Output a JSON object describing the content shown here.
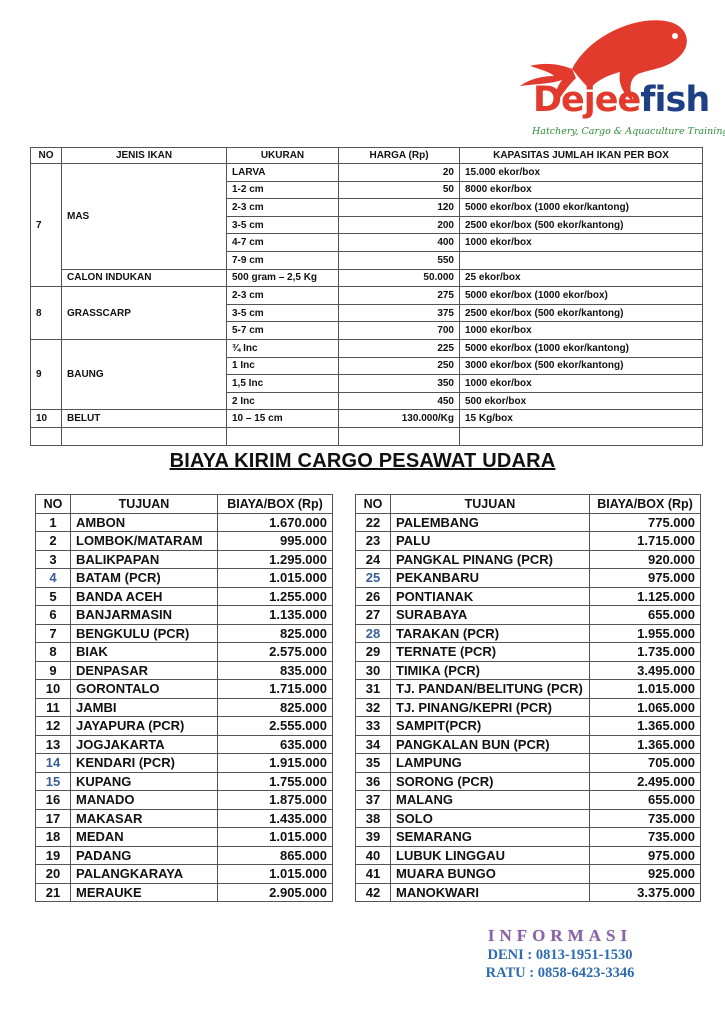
{
  "brand": {
    "name_part1": "Dejee",
    "name_part2": "fish",
    "tagline": "Hatchery, Cargo & Aquaculture Training",
    "colors": {
      "red": "#e23a2c",
      "blue": "#1e3f86",
      "green": "#2e8b3a"
    }
  },
  "fish_table": {
    "headers": [
      "NO",
      "JENIS IKAN",
      "UKURAN",
      "HARGA (Rp)",
      "KAPASITAS JUMLAH IKAN PER BOX"
    ],
    "groups": [
      {
        "no": "7",
        "species": [
          {
            "name": "MAS",
            "rows": [
              [
                "LARVA",
                "20",
                "15.000 ekor/box"
              ],
              [
                "1-2 cm",
                "50",
                "8000 ekor/box"
              ],
              [
                "2-3 cm",
                "120",
                "5000 ekor/box (1000 ekor/kantong)"
              ],
              [
                "3-5 cm",
                "200",
                "2500 ekor/box (500 ekor/kantong)"
              ],
              [
                "4-7 cm",
                "400",
                "1000 ekor/box"
              ],
              [
                "7-9 cm",
                "550",
                ""
              ]
            ]
          },
          {
            "name": "CALON INDUKAN",
            "rows": [
              [
                "500 gram – 2,5 Kg",
                "50.000",
                "25 ekor/box"
              ]
            ]
          }
        ]
      },
      {
        "no": "8",
        "species": [
          {
            "name": "GRASSCARP",
            "rows": [
              [
                "2-3 cm",
                "275",
                "5000 ekor/box (1000 ekor/box)"
              ],
              [
                "3-5 cm",
                "375",
                "2500 ekor/box (500 ekor/kantong)"
              ],
              [
                "5-7 cm",
                "700",
                "1000 ekor/box"
              ]
            ]
          }
        ]
      },
      {
        "no": "9",
        "species": [
          {
            "name": "BAUNG",
            "rows": [
              [
                "¾ Inc",
                "225",
                "5000 ekor/box (1000 ekor/kantong)"
              ],
              [
                "1 Inc",
                "250",
                "3000 ekor/box (500 ekor/kantong)"
              ],
              [
                "1,5 Inc",
                "350",
                "1000 ekor/box"
              ],
              [
                "2 Inc",
                "450",
                "500 ekor/box"
              ]
            ]
          }
        ]
      },
      {
        "no": "10",
        "species": [
          {
            "name": "BELUT",
            "rows": [
              [
                "10 – 15 cm",
                "130.000/Kg",
                "15 Kg/box"
              ]
            ]
          }
        ]
      }
    ]
  },
  "cargo": {
    "title": "BIAYA KIRIM CARGO PESAWAT UDARA",
    "headers": [
      "NO",
      "TUJUAN",
      "BIAYA/BOX (Rp)"
    ],
    "left": [
      {
        "no": "1",
        "dest": "AMBON",
        "cost": "1.670.000"
      },
      {
        "no": "2",
        "dest": "LOMBOK/MATARAM",
        "cost": "995.000"
      },
      {
        "no": "3",
        "dest": "BALIKPAPAN",
        "cost": "1.295.000"
      },
      {
        "no": "4",
        "dest": "BATAM (PCR)",
        "cost": "1.015.000",
        "blue": true
      },
      {
        "no": "5",
        "dest": "BANDA ACEH",
        "cost": "1.255.000"
      },
      {
        "no": "6",
        "dest": "BANJARMASIN",
        "cost": "1.135.000"
      },
      {
        "no": "7",
        "dest": "BENGKULU (PCR)",
        "cost": "825.000"
      },
      {
        "no": "8",
        "dest": "BIAK",
        "cost": "2.575.000"
      },
      {
        "no": "9",
        "dest": "DENPASAR",
        "cost": "835.000"
      },
      {
        "no": "10",
        "dest": "GORONTALO",
        "cost": "1.715.000"
      },
      {
        "no": "11",
        "dest": "JAMBI",
        "cost": "825.000"
      },
      {
        "no": "12",
        "dest": "JAYAPURA (PCR)",
        "cost": "2.555.000"
      },
      {
        "no": "13",
        "dest": "JOGJAKARTA",
        "cost": "635.000"
      },
      {
        "no": "14",
        "dest": "KENDARI (PCR)",
        "cost": "1.915.000",
        "blue": true
      },
      {
        "no": "15",
        "dest": "KUPANG",
        "cost": "1.755.000",
        "blue": true
      },
      {
        "no": "16",
        "dest": "MANADO",
        "cost": "1.875.000"
      },
      {
        "no": "17",
        "dest": "MAKASAR",
        "cost": "1.435.000"
      },
      {
        "no": "18",
        "dest": "MEDAN",
        "cost": "1.015.000"
      },
      {
        "no": "19",
        "dest": "PADANG",
        "cost": "865.000"
      },
      {
        "no": "20",
        "dest": "PALANGKARAYA",
        "cost": "1.015.000"
      },
      {
        "no": "21",
        "dest": "MERAUKE",
        "cost": "2.905.000"
      }
    ],
    "right": [
      {
        "no": "22",
        "dest": "PALEMBANG",
        "cost": "775.000"
      },
      {
        "no": "23",
        "dest": "PALU",
        "cost": "1.715.000"
      },
      {
        "no": "24",
        "dest": "PANGKAL PINANG (PCR)",
        "cost": "920.000"
      },
      {
        "no": "25",
        "dest": "PEKANBARU",
        "cost": "975.000",
        "blue": true
      },
      {
        "no": "26",
        "dest": "PONTIANAK",
        "cost": "1.125.000"
      },
      {
        "no": "27",
        "dest": "SURABAYA",
        "cost": "655.000"
      },
      {
        "no": "28",
        "dest": "TARAKAN (PCR)",
        "cost": "1.955.000",
        "blue": true
      },
      {
        "no": "29",
        "dest": "TERNATE (PCR)",
        "cost": "1.735.000"
      },
      {
        "no": "30",
        "dest": "TIMIKA (PCR)",
        "cost": "3.495.000"
      },
      {
        "no": "31",
        "dest": "TJ. PANDAN/BELITUNG (PCR)",
        "cost": "1.015.000"
      },
      {
        "no": "32",
        "dest": "TJ. PINANG/KEPRI (PCR)",
        "cost": "1.065.000"
      },
      {
        "no": "33",
        "dest": "SAMPIT(PCR)",
        "cost": "1.365.000"
      },
      {
        "no": "34",
        "dest": "PANGKALAN BUN (PCR)",
        "cost": "1.365.000"
      },
      {
        "no": "35",
        "dest": "LAMPUNG",
        "cost": "705.000"
      },
      {
        "no": "36",
        "dest": "SORONG (PCR)",
        "cost": "2.495.000"
      },
      {
        "no": "37",
        "dest": "MALANG",
        "cost": "655.000"
      },
      {
        "no": "38",
        "dest": "SOLO",
        "cost": "735.000"
      },
      {
        "no": "39",
        "dest": "SEMARANG",
        "cost": "735.000"
      },
      {
        "no": "40",
        "dest": "LUBUK LINGGAU",
        "cost": "975.000"
      },
      {
        "no": "41",
        "dest": "MUARA BUNGO",
        "cost": "925.000"
      },
      {
        "no": "42",
        "dest": "MANOKWARI",
        "cost": "3.375.000"
      }
    ]
  },
  "info": {
    "heading": "INFORMASI",
    "contacts": [
      "DENI  : 0813-1951-1530",
      "RATU : 0858-6423-3346"
    ]
  }
}
